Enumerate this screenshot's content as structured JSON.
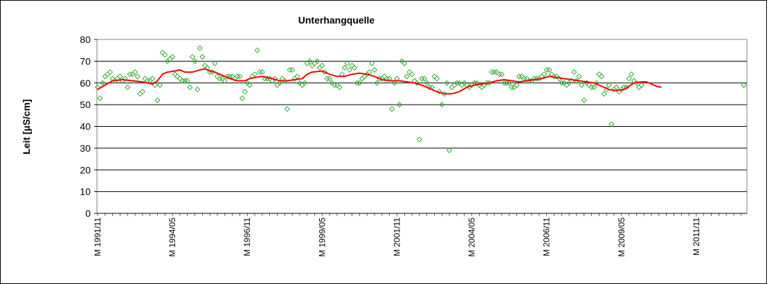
{
  "chart_data": {
    "type": "scatter",
    "title": "Unterhangquelle",
    "ylabel": "Leit [µS/cm]",
    "xlabel": "",
    "ylim": [
      0,
      80
    ],
    "yticks": [
      "0",
      "10",
      "20",
      "30",
      "40",
      "50",
      "60",
      "70",
      "80"
    ],
    "grid": "horizontal",
    "x_start": "M 1991/11",
    "x_labels": [
      {
        "label": "M 1991/11",
        "month_index": 0
      },
      {
        "label": "M 1994/05",
        "month_index": 30
      },
      {
        "label": "M 1996/11",
        "month_index": 60
      },
      {
        "label": "M 1999/05",
        "month_index": 90
      },
      {
        "label": "M 2001/11",
        "month_index": 120
      },
      {
        "label": "M 2004/05",
        "month_index": 150
      },
      {
        "label": "M 2006/11",
        "month_index": 180
      },
      {
        "label": "M 2009/05",
        "month_index": 210
      },
      {
        "label": "M 2011/11",
        "month_index": 240
      }
    ],
    "x_months": 260,
    "series": [
      {
        "role": "measured",
        "marker": "diamond-open",
        "color": "#33aa33",
        "points": [
          [
            0,
            58
          ],
          [
            1,
            53
          ],
          [
            2,
            60
          ],
          [
            3,
            63
          ],
          [
            4,
            64
          ],
          [
            5,
            65
          ],
          [
            6,
            62
          ],
          [
            7,
            61
          ],
          [
            8,
            62
          ],
          [
            9,
            63
          ],
          [
            10,
            61
          ],
          [
            11,
            62
          ],
          [
            12,
            58
          ],
          [
            13,
            64
          ],
          [
            14,
            64
          ],
          [
            15,
            65
          ],
          [
            16,
            63
          ],
          [
            17,
            55
          ],
          [
            18,
            56
          ],
          [
            19,
            62
          ],
          [
            20,
            61
          ],
          [
            21,
            61
          ],
          [
            22,
            62
          ],
          [
            23,
            59
          ],
          [
            24,
            52
          ],
          [
            25,
            59
          ],
          [
            26,
            74
          ],
          [
            27,
            73
          ],
          [
            28,
            70
          ],
          [
            29,
            71
          ],
          [
            30,
            72
          ],
          [
            31,
            64
          ],
          [
            32,
            63
          ],
          [
            33,
            62
          ],
          [
            34,
            61
          ],
          [
            35,
            61
          ],
          [
            36,
            61
          ],
          [
            37,
            58
          ],
          [
            38,
            72
          ],
          [
            39,
            70
          ],
          [
            40,
            57
          ],
          [
            41,
            76
          ],
          [
            42,
            72
          ],
          [
            43,
            68
          ],
          [
            44,
            67
          ],
          [
            45,
            65
          ],
          [
            46,
            65
          ],
          [
            47,
            69
          ],
          [
            48,
            63
          ],
          [
            49,
            62
          ],
          [
            50,
            62
          ],
          [
            51,
            61
          ],
          [
            52,
            63
          ],
          [
            53,
            63
          ],
          [
            54,
            63
          ],
          [
            55,
            62
          ],
          [
            56,
            63
          ],
          [
            57,
            63
          ],
          [
            58,
            53
          ],
          [
            59,
            56
          ],
          [
            60,
            60
          ],
          [
            61,
            59
          ],
          [
            62,
            63
          ],
          [
            63,
            64
          ],
          [
            64,
            75
          ],
          [
            65,
            65
          ],
          [
            66,
            65
          ],
          [
            67,
            62
          ],
          [
            68,
            62
          ],
          [
            69,
            62
          ],
          [
            70,
            61
          ],
          [
            71,
            62
          ],
          [
            72,
            59
          ],
          [
            73,
            60
          ],
          [
            74,
            62
          ],
          [
            75,
            61
          ],
          [
            76,
            48
          ],
          [
            77,
            66
          ],
          [
            78,
            66
          ],
          [
            79,
            62
          ],
          [
            80,
            63
          ],
          [
            81,
            60
          ],
          [
            82,
            59
          ],
          [
            83,
            60
          ],
          [
            84,
            69
          ],
          [
            85,
            70
          ],
          [
            86,
            68
          ],
          [
            87,
            69
          ],
          [
            88,
            70
          ],
          [
            89,
            67
          ],
          [
            90,
            68
          ],
          [
            91,
            65
          ],
          [
            92,
            62
          ],
          [
            93,
            62
          ],
          [
            94,
            60
          ],
          [
            95,
            59
          ],
          [
            96,
            59
          ],
          [
            97,
            58
          ],
          [
            98,
            64
          ],
          [
            99,
            67
          ],
          [
            100,
            69
          ],
          [
            101,
            66
          ],
          [
            102,
            68
          ],
          [
            103,
            67
          ],
          [
            104,
            60
          ],
          [
            105,
            60
          ],
          [
            106,
            62
          ],
          [
            107,
            63
          ],
          [
            108,
            64
          ],
          [
            109,
            65
          ],
          [
            110,
            69
          ],
          [
            111,
            66
          ],
          [
            112,
            60
          ],
          [
            113,
            62
          ],
          [
            114,
            62
          ],
          [
            115,
            63
          ],
          [
            116,
            62
          ],
          [
            117,
            62
          ],
          [
            118,
            48
          ],
          [
            119,
            60
          ],
          [
            120,
            62
          ],
          [
            121,
            50
          ],
          [
            122,
            70
          ],
          [
            123,
            69
          ],
          [
            124,
            63
          ],
          [
            125,
            65
          ],
          [
            126,
            64
          ],
          [
            127,
            61
          ],
          [
            128,
            60
          ],
          [
            129,
            34
          ],
          [
            130,
            62
          ],
          [
            131,
            62
          ],
          [
            132,
            60
          ],
          [
            133,
            58
          ],
          [
            134,
            58
          ],
          [
            135,
            63
          ],
          [
            136,
            62
          ],
          [
            137,
            56
          ],
          [
            138,
            50
          ],
          [
            139,
            55
          ],
          [
            140,
            60
          ],
          [
            141,
            29
          ],
          [
            142,
            58
          ],
          [
            143,
            59
          ],
          [
            144,
            60
          ],
          [
            145,
            60
          ],
          [
            146,
            59
          ],
          [
            147,
            60
          ],
          [
            148,
            59
          ],
          [
            149,
            58
          ],
          [
            150,
            59
          ],
          [
            151,
            60
          ],
          [
            152,
            60
          ],
          [
            153,
            59
          ],
          [
            154,
            58
          ],
          [
            155,
            59
          ],
          [
            156,
            60
          ],
          [
            157,
            60
          ],
          [
            158,
            65
          ],
          [
            159,
            65
          ],
          [
            160,
            65
          ],
          [
            161,
            64
          ],
          [
            162,
            64
          ],
          [
            163,
            60
          ],
          [
            164,
            60
          ],
          [
            165,
            60
          ],
          [
            166,
            58
          ],
          [
            167,
            58
          ],
          [
            168,
            59
          ],
          [
            169,
            63
          ],
          [
            170,
            63
          ],
          [
            171,
            62
          ],
          [
            172,
            62
          ],
          [
            173,
            61
          ],
          [
            174,
            61
          ],
          [
            175,
            62
          ],
          [
            176,
            62
          ],
          [
            177,
            62
          ],
          [
            178,
            63
          ],
          [
            179,
            64
          ],
          [
            180,
            66
          ],
          [
            181,
            66
          ],
          [
            182,
            64
          ],
          [
            183,
            63
          ],
          [
            184,
            63
          ],
          [
            185,
            62
          ],
          [
            186,
            60
          ],
          [
            187,
            60
          ],
          [
            188,
            59
          ],
          [
            189,
            60
          ],
          [
            190,
            61
          ],
          [
            191,
            65
          ],
          [
            192,
            61
          ],
          [
            193,
            63
          ],
          [
            194,
            59
          ],
          [
            195,
            52
          ],
          [
            196,
            60
          ],
          [
            197,
            59
          ],
          [
            198,
            58
          ],
          [
            199,
            58
          ],
          [
            200,
            60
          ],
          [
            201,
            64
          ],
          [
            202,
            63
          ],
          [
            203,
            55
          ],
          [
            204,
            57
          ],
          [
            205,
            59
          ],
          [
            206,
            41
          ],
          [
            207,
            57
          ],
          [
            208,
            58
          ],
          [
            209,
            56
          ],
          [
            210,
            57
          ],
          [
            211,
            58
          ],
          [
            212,
            58
          ],
          [
            213,
            62
          ],
          [
            214,
            64
          ],
          [
            215,
            61
          ],
          [
            216,
            60
          ],
          [
            217,
            58
          ],
          [
            218,
            59
          ],
          [
            259,
            59
          ]
        ]
      },
      {
        "role": "moving-average",
        "marker": "line",
        "color": "#ff0000",
        "points": [
          [
            0,
            57
          ],
          [
            3,
            59
          ],
          [
            6,
            61
          ],
          [
            10,
            61.5
          ],
          [
            14,
            61
          ],
          [
            18,
            60.5
          ],
          [
            20,
            60
          ],
          [
            22,
            59.5
          ],
          [
            24,
            61
          ],
          [
            26,
            64
          ],
          [
            28,
            65
          ],
          [
            31,
            65.5
          ],
          [
            33,
            66
          ],
          [
            35,
            65
          ],
          [
            38,
            65
          ],
          [
            41,
            66
          ],
          [
            43,
            66.5
          ],
          [
            45,
            65.5
          ],
          [
            47,
            65
          ],
          [
            50,
            63.5
          ],
          [
            53,
            62
          ],
          [
            56,
            61
          ],
          [
            59,
            61
          ],
          [
            61,
            62
          ],
          [
            63,
            62.5
          ],
          [
            66,
            63
          ],
          [
            70,
            62
          ],
          [
            73,
            61
          ],
          [
            76,
            61
          ],
          [
            79,
            61.5
          ],
          [
            82,
            62
          ],
          [
            84,
            64
          ],
          [
            86,
            65
          ],
          [
            90,
            65.5
          ],
          [
            93,
            64
          ],
          [
            96,
            63
          ],
          [
            99,
            63
          ],
          [
            102,
            64
          ],
          [
            105,
            64.5
          ],
          [
            108,
            64
          ],
          [
            111,
            63
          ],
          [
            114,
            61.5
          ],
          [
            117,
            61
          ],
          [
            121,
            61
          ],
          [
            124,
            60.5
          ],
          [
            127,
            60
          ],
          [
            130,
            59
          ],
          [
            133,
            57.5
          ],
          [
            136,
            56
          ],
          [
            139,
            55
          ],
          [
            142,
            55
          ],
          [
            145,
            56
          ],
          [
            148,
            58
          ],
          [
            151,
            59
          ],
          [
            154,
            59.5
          ],
          [
            157,
            60
          ],
          [
            160,
            61
          ],
          [
            163,
            61.5
          ],
          [
            166,
            61
          ],
          [
            169,
            60.5
          ],
          [
            172,
            61
          ],
          [
            175,
            61.5
          ],
          [
            178,
            62
          ],
          [
            181,
            63
          ],
          [
            184,
            62.5
          ],
          [
            187,
            62
          ],
          [
            190,
            61.5
          ],
          [
            193,
            61
          ],
          [
            196,
            60.5
          ],
          [
            199,
            60
          ],
          [
            202,
            58.5
          ],
          [
            205,
            57
          ],
          [
            208,
            56.5
          ],
          [
            211,
            57
          ],
          [
            213,
            58.5
          ],
          [
            215,
            60
          ],
          [
            218,
            60.5
          ],
          [
            220,
            60.5
          ],
          [
            222,
            59.5
          ],
          [
            224,
            58.5
          ],
          [
            226,
            58
          ]
        ]
      }
    ]
  }
}
